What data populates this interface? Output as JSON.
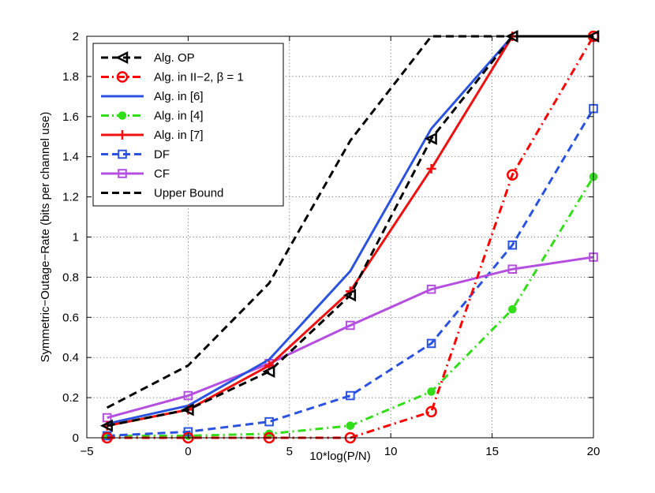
{
  "chart_data": {
    "type": "line",
    "title": "",
    "xlabel": "10*log(P/N)",
    "ylabel": "Symmetric−Outage−Rate (bits per channel use)",
    "xlim": [
      -5,
      20
    ],
    "ylim": [
      0,
      2
    ],
    "xticks": [
      -5,
      0,
      5,
      10,
      15,
      20
    ],
    "yticks": [
      0,
      0.2,
      0.4,
      0.6,
      0.8,
      1,
      1.2,
      1.4,
      1.6,
      1.8,
      2
    ],
    "xtick_labels": [
      "−5",
      "0",
      "5",
      "10",
      "15",
      "20"
    ],
    "ytick_labels": [
      "0",
      "0.2",
      "0.4",
      "0.6",
      "0.8",
      "1",
      "1.2",
      "1.4",
      "1.6",
      "1.8",
      "2"
    ],
    "grid": true,
    "legend_position": "top-left",
    "series": [
      {
        "name": "Alg. OP",
        "color": "#000000",
        "dash": "dashed",
        "marker": "triangle-left",
        "x": [
          -4,
          0,
          4,
          8,
          12,
          16,
          20
        ],
        "y": [
          0.06,
          0.14,
          0.33,
          0.71,
          1.49,
          2.0,
          2.0
        ]
      },
      {
        "name": "Alg. in II−2, β = 1",
        "color": "#ff0000",
        "dash": "dashdot",
        "marker": "circle",
        "x": [
          -4,
          0,
          4,
          8,
          12,
          16,
          20
        ],
        "y": [
          0.0,
          0.0,
          0.0,
          0.0,
          0.13,
          1.31,
          2.0
        ]
      },
      {
        "name": "Alg. in [6]",
        "color": "#2b53e0",
        "dash": "solid",
        "marker": "none",
        "x": [
          -4,
          0,
          4,
          8,
          12,
          16
        ],
        "y": [
          0.07,
          0.16,
          0.39,
          0.83,
          1.54,
          2.0
        ]
      },
      {
        "name": "Alg. in [4]",
        "color": "#33dd1a",
        "dash": "dashdot",
        "marker": "dot",
        "x": [
          -4,
          0,
          4,
          8,
          12,
          16,
          20
        ],
        "y": [
          0.01,
          0.01,
          0.02,
          0.06,
          0.23,
          0.64,
          1.3
        ]
      },
      {
        "name": "Alg. in [7]",
        "color": "#ee1111",
        "dash": "solid",
        "marker": "plus",
        "x": [
          -4,
          0,
          4,
          8,
          12,
          16
        ],
        "y": [
          0.06,
          0.14,
          0.36,
          0.73,
          1.34,
          2.0
        ]
      },
      {
        "name": "DF",
        "color": "#2b53e0",
        "dash": "dashed",
        "marker": "square",
        "x": [
          -4,
          0,
          4,
          8,
          12,
          16,
          20
        ],
        "y": [
          0.01,
          0.03,
          0.08,
          0.21,
          0.47,
          0.96,
          1.64
        ]
      },
      {
        "name": "CF",
        "color": "#b44fe0",
        "dash": "solid",
        "marker": "square",
        "x": [
          -4,
          0,
          4,
          8,
          12,
          16,
          20
        ],
        "y": [
          0.1,
          0.21,
          0.37,
          0.56,
          0.74,
          0.84,
          0.9
        ]
      },
      {
        "name": "Upper Bound",
        "color": "#000000",
        "dash": "dashed",
        "marker": "none",
        "x": [
          -4,
          0,
          4,
          8,
          12,
          16,
          20
        ],
        "y": [
          0.15,
          0.36,
          0.77,
          1.48,
          2.0,
          2.0,
          2.0
        ]
      }
    ]
  }
}
